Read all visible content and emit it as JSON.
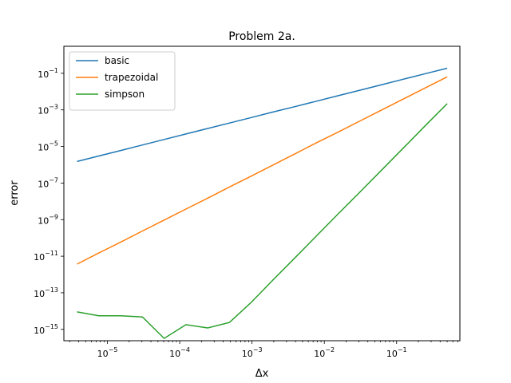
{
  "chart_data": {
    "type": "line",
    "title": "Problem 2a.",
    "xlabel": "Δx",
    "ylabel": "error",
    "xscale": "log",
    "yscale": "log",
    "xlim": [
      2.5e-06,
      0.75
    ],
    "ylim": [
      2.4e-16,
      3.0
    ],
    "legend": "top-left",
    "grid": false,
    "x_ticks": [
      {
        "value": 1e-05,
        "base": "10",
        "exp": "−5"
      },
      {
        "value": 0.0001,
        "base": "10",
        "exp": "−4"
      },
      {
        "value": 0.001,
        "base": "10",
        "exp": "−3"
      },
      {
        "value": 0.01,
        "base": "10",
        "exp": "−2"
      },
      {
        "value": 0.1,
        "base": "10",
        "exp": "−1"
      }
    ],
    "y_ticks": [
      {
        "value": 1e-15,
        "base": "10",
        "exp": "−15"
      },
      {
        "value": 1e-13,
        "base": "10",
        "exp": "−13"
      },
      {
        "value": 1e-11,
        "base": "10",
        "exp": "−11"
      },
      {
        "value": 1e-09,
        "base": "10",
        "exp": "−9"
      },
      {
        "value": 1e-07,
        "base": "10",
        "exp": "−7"
      },
      {
        "value": 1e-05,
        "base": "10",
        "exp": "−5"
      },
      {
        "value": 0.001,
        "base": "10",
        "exp": "−3"
      },
      {
        "value": 0.1,
        "base": "10",
        "exp": "−1"
      }
    ],
    "x": [
      3.8e-06,
      7.6e-06,
      1.53e-05,
      3.05e-05,
      6.1e-05,
      0.000122,
      0.000244,
      0.000488,
      0.000977,
      0.00195,
      0.0039,
      0.0078,
      0.0156,
      0.0313,
      0.0625,
      0.125,
      0.25,
      0.5
    ],
    "series": [
      {
        "name": "basic",
        "color": "#1f77b4",
        "values": [
          1.5e-06,
          3e-06,
          6e-06,
          1.2e-05,
          2.4e-05,
          4.8e-05,
          9.6e-05,
          0.00019,
          0.00038,
          0.00076,
          0.0015,
          0.003,
          0.006,
          0.012,
          0.024,
          0.048,
          0.096,
          0.19
        ]
      },
      {
        "name": "trapezoidal",
        "color": "#ff7f0e",
        "values": [
          3.7e-12,
          1.5e-11,
          5.9e-11,
          2.4e-10,
          9.5e-10,
          3.8e-09,
          1.5e-08,
          6.1e-08,
          2.4e-07,
          9.7e-07,
          3.9e-06,
          1.6e-05,
          6.2e-05,
          0.00025,
          0.001,
          0.004,
          0.016,
          0.064
        ]
      },
      {
        "name": "simpson",
        "color": "#2ca02c",
        "values": [
          9e-15,
          5.5e-15,
          5.5e-15,
          4.8e-15,
          3.2e-16,
          1.8e-15,
          1.2e-15,
          2.4e-15,
          3e-14,
          5e-13,
          8e-12,
          1.3e-10,
          2.1e-09,
          3.3e-08,
          5.3e-07,
          8.5e-06,
          0.00014,
          0.0022
        ]
      }
    ]
  }
}
